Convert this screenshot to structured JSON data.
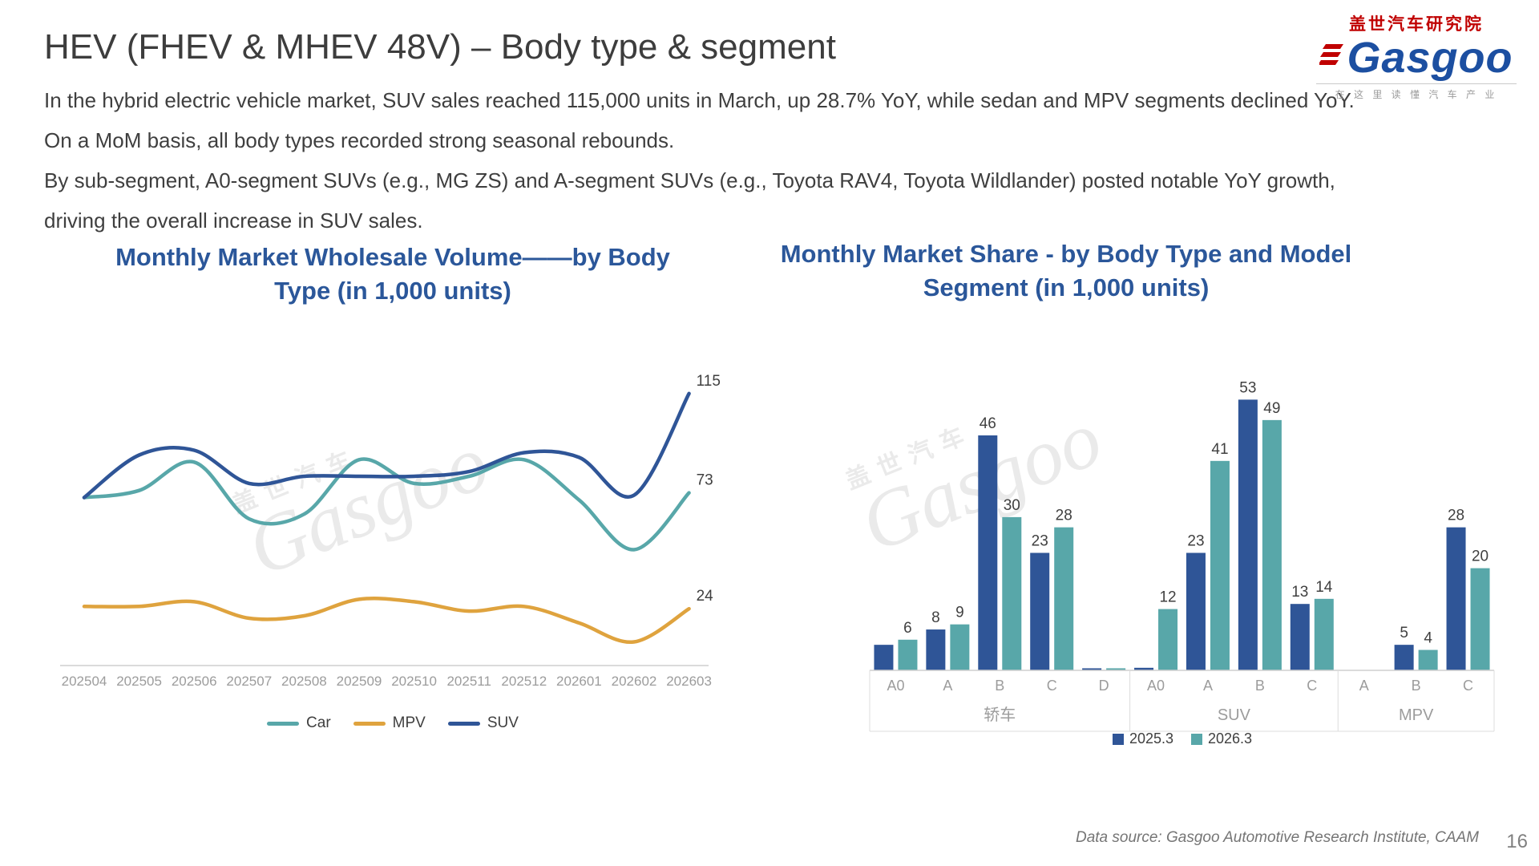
{
  "slide": {
    "title": "HEV (FHEV & MHEV 48V) – Body type & segment",
    "paragraph_lines": [
      "In the hybrid electric vehicle market, SUV sales reached 115,000 units in March, up 28.7% YoY, while sedan and MPV segments declined YoY.",
      "On a MoM basis, all body types recorded strong seasonal rebounds.",
      "By sub-segment, A0-segment SUVs (e.g., MG ZS) and A-segment SUVs (e.g., Toyota RAV4, Toyota Wildlander) posted notable YoY growth,",
      "driving the overall increase in SUV sales."
    ],
    "data_source": "Data source: Gasgoo Automotive Research Institute, CAAM",
    "page_number": "16"
  },
  "logo": {
    "top_text": "盖世汽车研究院",
    "wordmark": "Gasgoo",
    "tagline": "在 这 里 读 懂 汽 车 产 业"
  },
  "watermark": {
    "cn": "盖世汽车",
    "en": "Gasgoo"
  },
  "colors": {
    "suv_blue": "#2F5597",
    "car_teal": "#58A7A9",
    "mpv_orange": "#DFA33E",
    "title_blue": "#2B579A",
    "axis_gray": "#9C9C9C",
    "label_dark": "#404040",
    "line_gray": "#CFCFCF",
    "box_gray": "#DCDCDC"
  },
  "chart_data": [
    {
      "type": "line",
      "title": "Monthly Market Wholesale Volume——by Body Type (in 1,000 units)",
      "title_lines": [
        "Monthly Market Wholesale Volume——by Body",
        "Type (in 1,000 units)"
      ],
      "x_labels": [
        "202504",
        "202505",
        "202506",
        "202507",
        "202508",
        "202509",
        "202510",
        "202511",
        "202512",
        "202601",
        "202602",
        "202603"
      ],
      "ylim": [
        0,
        120
      ],
      "grid": false,
      "legend_position": "bottom",
      "series": [
        {
          "name": "Car",
          "color": "car_teal",
          "values": [
            71,
            74,
            86,
            62,
            64,
            87,
            77,
            80,
            87,
            70,
            49,
            73
          ],
          "end_label": "73"
        },
        {
          "name": "MPV",
          "color": "mpv_orange",
          "values": [
            25,
            25,
            27,
            20,
            21,
            28,
            27,
            23,
            25,
            18,
            10,
            24
          ],
          "end_label": "24"
        },
        {
          "name": "SUV",
          "color": "suv_blue",
          "values": [
            71,
            89,
            91,
            77,
            80,
            80,
            80,
            82,
            90,
            88,
            72,
            115
          ],
          "end_label": "115"
        }
      ]
    },
    {
      "type": "bar",
      "title": "Monthly Market Share - by Body Type and Model Segment (in 1,000 units)",
      "title_lines": [
        "Monthly Market Share - by Body Type and Model",
        "Segment (in 1,000 units)"
      ],
      "ylim": [
        0,
        60
      ],
      "groups": [
        {
          "name": "轿车",
          "categories": [
            "A0",
            "A",
            "B",
            "C",
            "D"
          ],
          "series": [
            {
              "name": "2025.3",
              "color": "suv_blue",
              "values": [
                5,
                8,
                46,
                23,
                0.4
              ],
              "labels": [
                "",
                "8",
                "46",
                "23",
                ""
              ]
            },
            {
              "name": "2026.3",
              "color": "car_teal",
              "values": [
                6,
                9,
                30,
                28,
                0.4
              ],
              "labels": [
                "6",
                "9",
                "30",
                "28",
                ""
              ]
            }
          ]
        },
        {
          "name": "SUV",
          "categories": [
            "A0",
            "A",
            "B",
            "C"
          ],
          "series": [
            {
              "name": "2025.3",
              "color": "suv_blue",
              "values": [
                0.5,
                23,
                53,
                13
              ],
              "labels": [
                "",
                "23",
                "53",
                "13"
              ]
            },
            {
              "name": "2026.3",
              "color": "car_teal",
              "values": [
                12,
                41,
                49,
                14
              ],
              "labels": [
                "12",
                "41",
                "49",
                "14"
              ]
            }
          ]
        },
        {
          "name": "MPV",
          "categories": [
            "A",
            "B",
            "C"
          ],
          "series": [
            {
              "name": "2025.3",
              "color": "suv_blue",
              "values": [
                0,
                5,
                28
              ],
              "labels": [
                "",
                "5",
                "28"
              ]
            },
            {
              "name": "2026.3",
              "color": "car_teal",
              "values": [
                0,
                4,
                20
              ],
              "labels": [
                "",
                "4",
                "20"
              ]
            }
          ]
        }
      ],
      "legend": [
        {
          "label": "2025.3",
          "color": "suv_blue"
        },
        {
          "label": "2026.3",
          "color": "car_teal"
        }
      ]
    }
  ]
}
